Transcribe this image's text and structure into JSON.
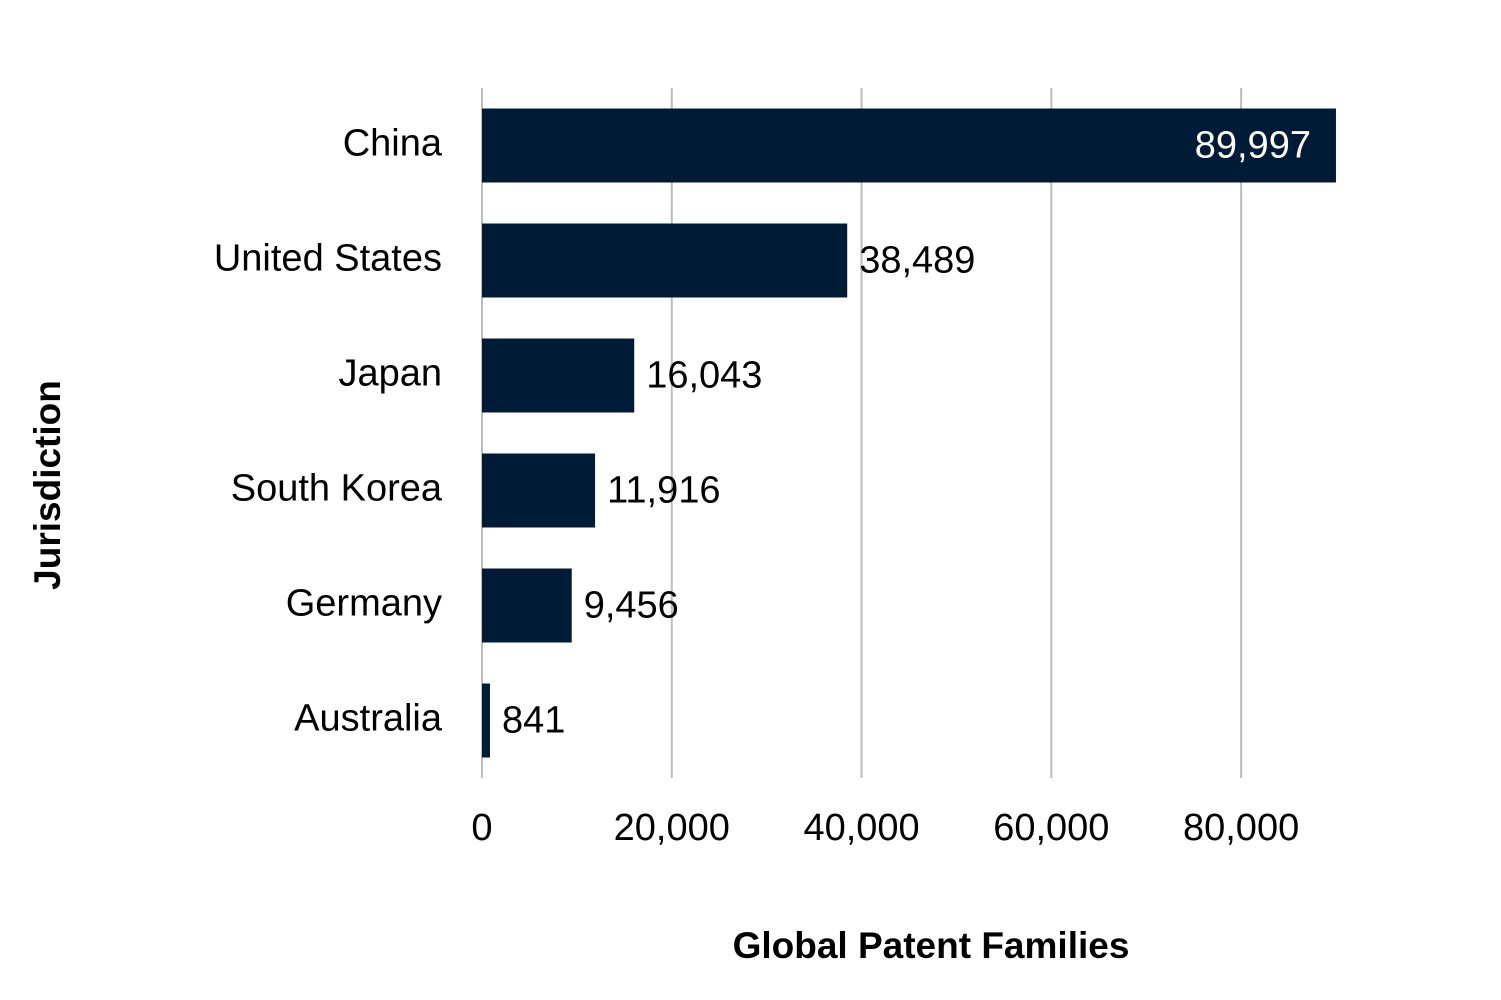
{
  "chart_data": {
    "type": "bar",
    "orientation": "horizontal",
    "x_label": "Global Patent Families",
    "y_label": "Jurisdiction",
    "categories": [
      "China",
      "United States",
      "Japan",
      "South Korea",
      "Germany",
      "Australia"
    ],
    "values": [
      89997,
      38489,
      16043,
      11916,
      9456,
      841
    ],
    "value_labels": [
      "89,997",
      "38,489",
      "16,043",
      "11,916",
      "9,456",
      "841"
    ],
    "color": "#001b36",
    "xlim": [
      0,
      90000
    ],
    "xticks": [
      0,
      {
        "value": 20000,
        "label": "20,000"
      },
      {
        "value": 40000,
        "label": "40,000"
      },
      {
        "value": 60000,
        "label": "60,000"
      },
      {
        "value": 80000,
        "label": "80,000"
      }
    ],
    "grid": true
  }
}
